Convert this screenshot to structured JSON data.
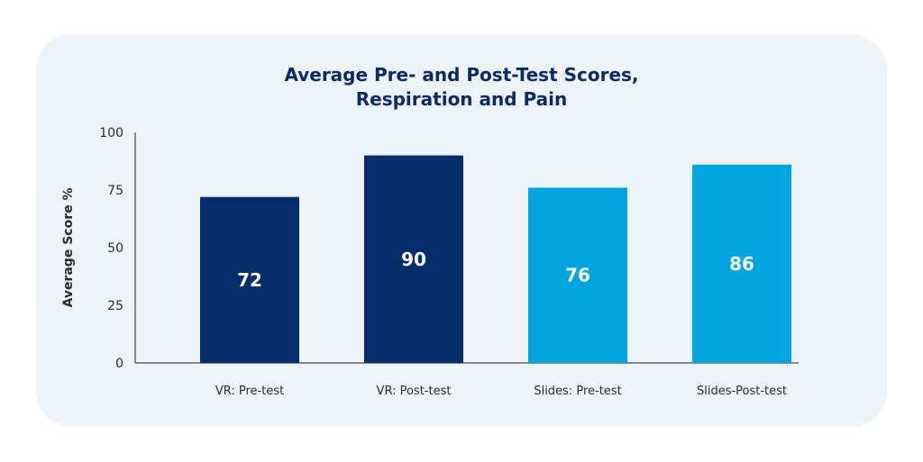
{
  "chart_data": {
    "type": "bar",
    "title_lines": [
      "Average Pre- and Post-Test Scores,",
      "Respiration and Pain"
    ],
    "ylabel": "Average Score %",
    "xlabel": "",
    "ylim": [
      0,
      100
    ],
    "yticks": [
      "0",
      "25",
      "50",
      "75",
      "100"
    ],
    "categories": [
      "VR: Pre-test",
      "VR: Post-test",
      "Slides: Pre-test",
      "Slides-Post-test"
    ],
    "values": [
      72,
      90,
      76,
      86
    ],
    "colors": [
      "#052d69",
      "#052d69",
      "#00a5e0",
      "#00a5e0"
    ],
    "grid": false,
    "legend": "none"
  }
}
